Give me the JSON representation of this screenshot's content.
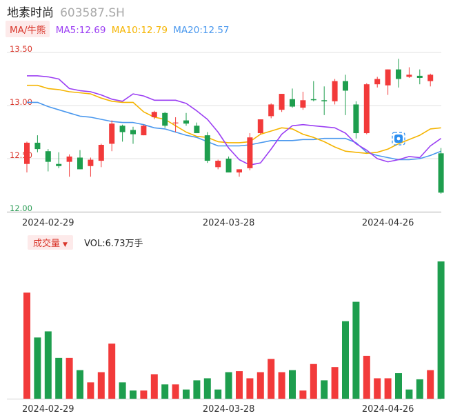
{
  "header": {
    "name": "地素时尚",
    "code": "603587.SH"
  },
  "ma": {
    "tag": "MA/牛熊",
    "ma5_label": "MA5:12.69",
    "ma10_label": "MA10:12.79",
    "ma20_label": "MA20:12.57",
    "ma5_color": "#9b3ef3",
    "ma10_color": "#f5b400",
    "ma20_color": "#4a98ee"
  },
  "volume": {
    "tag": "成交量",
    "label": "VOL:6.73万手"
  },
  "colors": {
    "up": "#f23a3a",
    "down": "#1e9e4e",
    "grid": "#e0e0e0"
  },
  "icons": {
    "marker": "logo-marker-icon",
    "vol_menu": "caret-down-icon"
  },
  "chart_data": {
    "type": "candlestick",
    "ylim": [
      12.0,
      13.5
    ],
    "y_ticks": [
      "13.50",
      "13.00",
      "12.50",
      "12.00"
    ],
    "x_ticks": [
      {
        "index": 2,
        "label": "2024-02-29"
      },
      {
        "index": 19,
        "label": "2024-03-28"
      },
      {
        "index": 34,
        "label": "2024-04-26"
      }
    ],
    "candles": [
      {
        "o": 12.45,
        "c": 12.65,
        "h": 12.66,
        "l": 12.37
      },
      {
        "o": 12.65,
        "c": 12.59,
        "h": 12.72,
        "l": 12.56
      },
      {
        "o": 12.57,
        "c": 12.47,
        "h": 12.59,
        "l": 12.38
      },
      {
        "o": 12.45,
        "c": 12.43,
        "h": 12.56,
        "l": 12.41
      },
      {
        "o": 12.47,
        "c": 12.52,
        "h": 12.54,
        "l": 12.33
      },
      {
        "o": 12.51,
        "c": 12.4,
        "h": 12.58,
        "l": 12.4
      },
      {
        "o": 12.43,
        "c": 12.49,
        "h": 12.51,
        "l": 12.33
      },
      {
        "o": 12.48,
        "c": 12.63,
        "h": 12.64,
        "l": 12.42
      },
      {
        "o": 12.64,
        "c": 12.83,
        "h": 12.86,
        "l": 12.57
      },
      {
        "o": 12.81,
        "c": 12.75,
        "h": 12.82,
        "l": 12.66
      },
      {
        "o": 12.77,
        "c": 12.73,
        "h": 12.8,
        "l": 12.64
      },
      {
        "o": 12.72,
        "c": 12.81,
        "h": 12.82,
        "l": 12.72
      },
      {
        "o": 12.89,
        "c": 12.94,
        "h": 12.95,
        "l": 12.87
      },
      {
        "o": 12.93,
        "c": 12.81,
        "h": 12.94,
        "l": 12.79
      },
      {
        "o": 12.84,
        "c": 12.84,
        "h": 12.89,
        "l": 12.75
      },
      {
        "o": 12.86,
        "c": 12.83,
        "h": 12.93,
        "l": 12.81
      },
      {
        "o": 12.81,
        "c": 12.74,
        "h": 12.84,
        "l": 12.74
      },
      {
        "o": 12.72,
        "c": 12.48,
        "h": 12.75,
        "l": 12.46
      },
      {
        "o": 12.42,
        "c": 12.48,
        "h": 12.49,
        "l": 12.4
      },
      {
        "o": 12.5,
        "c": 12.37,
        "h": 12.52,
        "l": 12.37
      },
      {
        "o": 12.37,
        "c": 12.4,
        "h": 12.4,
        "l": 12.33
      },
      {
        "o": 12.41,
        "c": 12.7,
        "h": 12.74,
        "l": 12.39
      },
      {
        "o": 12.74,
        "c": 12.87,
        "h": 12.87,
        "l": 12.73
      },
      {
        "o": 12.9,
        "c": 13.01,
        "h": 13.02,
        "l": 12.88
      },
      {
        "o": 12.96,
        "c": 13.11,
        "h": 13.11,
        "l": 12.94
      },
      {
        "o": 13.06,
        "c": 12.99,
        "h": 13.16,
        "l": 12.98
      },
      {
        "o": 12.98,
        "c": 13.05,
        "h": 13.13,
        "l": 12.96
      },
      {
        "o": 13.06,
        "c": 13.05,
        "h": 13.23,
        "l": 13.04
      },
      {
        "o": 13.05,
        "c": 13.04,
        "h": 13.18,
        "l": 12.91
      },
      {
        "o": 13.04,
        "c": 13.23,
        "h": 13.25,
        "l": 13.01
      },
      {
        "o": 13.23,
        "c": 13.14,
        "h": 13.29,
        "l": 12.91
      },
      {
        "o": 13.01,
        "c": 12.74,
        "h": 13.04,
        "l": 12.69
      },
      {
        "o": 12.74,
        "c": 13.2,
        "h": 13.21,
        "l": 12.73
      },
      {
        "o": 13.2,
        "c": 13.25,
        "h": 13.27,
        "l": 13.17
      },
      {
        "o": 13.19,
        "c": 13.34,
        "h": 13.34,
        "l": 13.1
      },
      {
        "o": 13.34,
        "c": 13.25,
        "h": 13.44,
        "l": 13.17
      },
      {
        "o": 13.27,
        "c": 13.29,
        "h": 13.36,
        "l": 13.26
      },
      {
        "o": 13.28,
        "c": 13.26,
        "h": 13.34,
        "l": 13.2
      },
      {
        "o": 13.23,
        "c": 13.29,
        "h": 13.3,
        "l": 13.18
      },
      {
        "o": 12.55,
        "c": 12.18,
        "h": 12.6,
        "l": 12.17
      }
    ],
    "ma5": [
      13.28,
      13.28,
      13.27,
      13.25,
      13.16,
      13.14,
      13.13,
      13.1,
      13.06,
      13.04,
      13.11,
      13.09,
      13.05,
      13.05,
      13.05,
      13.02,
      12.95,
      12.87,
      12.75,
      12.6,
      12.49,
      12.44,
      12.46,
      12.59,
      12.73,
      12.81,
      12.82,
      12.81,
      12.8,
      12.79,
      12.74,
      12.64,
      12.58,
      12.5,
      12.47,
      12.49,
      12.52,
      12.51,
      12.62,
      12.69
    ],
    "ma10": [
      13.19,
      13.19,
      13.16,
      13.15,
      13.13,
      13.12,
      13.11,
      13.07,
      13.04,
      13.03,
      13.03,
      12.94,
      12.89,
      12.87,
      12.81,
      12.75,
      12.71,
      12.7,
      12.66,
      12.65,
      12.65,
      12.66,
      12.73,
      12.76,
      12.79,
      12.78,
      12.73,
      12.7,
      12.66,
      12.61,
      12.57,
      12.56,
      12.55,
      12.56,
      12.59,
      12.64,
      12.68,
      12.72,
      12.78,
      12.79
    ],
    "ma20": [
      13.03,
      13.03,
      12.99,
      12.96,
      12.93,
      12.9,
      12.89,
      12.87,
      12.85,
      12.84,
      12.84,
      12.82,
      12.79,
      12.78,
      12.75,
      12.72,
      12.7,
      12.66,
      12.62,
      12.62,
      12.62,
      12.63,
      12.65,
      12.67,
      12.67,
      12.67,
      12.68,
      12.68,
      12.69,
      12.69,
      12.69,
      12.65,
      12.56,
      12.53,
      12.51,
      12.49,
      12.49,
      12.5,
      12.53,
      12.57
    ],
    "volumes": [
      {
        "v": 52000,
        "up": true
      },
      {
        "v": 30000,
        "up": false
      },
      {
        "v": 33000,
        "up": false
      },
      {
        "v": 20000,
        "up": false
      },
      {
        "v": 20000,
        "up": true
      },
      {
        "v": 14000,
        "up": false
      },
      {
        "v": 8000,
        "up": true
      },
      {
        "v": 13000,
        "up": true
      },
      {
        "v": 27000,
        "up": true
      },
      {
        "v": 8000,
        "up": false
      },
      {
        "v": 4000,
        "up": false
      },
      {
        "v": 4000,
        "up": true
      },
      {
        "v": 12000,
        "up": true
      },
      {
        "v": 7000,
        "up": false
      },
      {
        "v": 7000,
        "up": true
      },
      {
        "v": 4500,
        "up": false
      },
      {
        "v": 9000,
        "up": false
      },
      {
        "v": 10000,
        "up": false
      },
      {
        "v": 4500,
        "up": false
      },
      {
        "v": 13000,
        "up": false
      },
      {
        "v": 13500,
        "up": true
      },
      {
        "v": 10000,
        "up": true
      },
      {
        "v": 13000,
        "up": true
      },
      {
        "v": 19500,
        "up": true
      },
      {
        "v": 13000,
        "up": true
      },
      {
        "v": 14000,
        "up": false
      },
      {
        "v": 4000,
        "up": true
      },
      {
        "v": 17000,
        "up": true
      },
      {
        "v": 9000,
        "up": false
      },
      {
        "v": 15500,
        "up": true
      },
      {
        "v": 38000,
        "up": false
      },
      {
        "v": 47500,
        "up": false
      },
      {
        "v": 21000,
        "up": true
      },
      {
        "v": 10000,
        "up": true
      },
      {
        "v": 10000,
        "up": true
      },
      {
        "v": 12500,
        "up": false
      },
      {
        "v": 4500,
        "up": false
      },
      {
        "v": 9500,
        "up": false
      },
      {
        "v": 14000,
        "up": true
      },
      {
        "v": 67300,
        "up": false
      }
    ]
  }
}
